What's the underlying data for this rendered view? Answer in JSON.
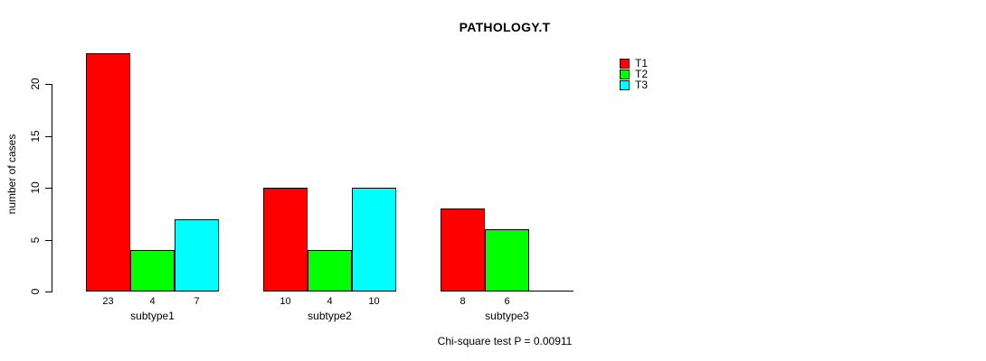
{
  "figure": {
    "background": "#ffffff",
    "text_color": "#000000"
  },
  "chart_data": {
    "type": "bar",
    "title": "PATHOLOGY.T",
    "ylabel": "number of cases",
    "xlabel": "",
    "categories": [
      "subtype1",
      "subtype2",
      "subtype3"
    ],
    "series": [
      {
        "name": "T1",
        "color": "#ff0000",
        "values": [
          23,
          10,
          8
        ]
      },
      {
        "name": "T2",
        "color": "#00ff00",
        "values": [
          4,
          4,
          6
        ]
      },
      {
        "name": "T3",
        "color": "#00ffff",
        "values": [
          7,
          10,
          0
        ]
      }
    ],
    "bar_value_labels": [
      [
        "23",
        "10",
        "8"
      ],
      [
        "4",
        "4",
        "6"
      ],
      [
        "7",
        "10",
        ""
      ]
    ],
    "yticks": [
      0,
      5,
      10,
      15,
      20
    ],
    "ylim": [
      0,
      23
    ],
    "grid": false,
    "legend": {
      "entries": [
        "T1",
        "T2",
        "T3"
      ],
      "position": "top-right"
    }
  },
  "annotation": "Chi-square test P = 0.00911"
}
